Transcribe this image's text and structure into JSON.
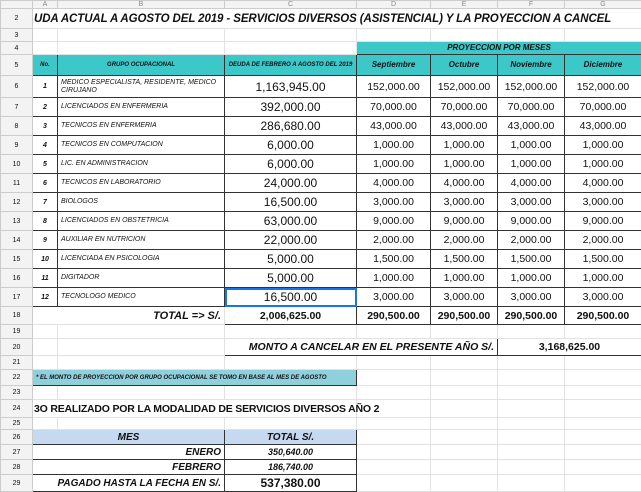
{
  "columns": [
    "A",
    "B",
    "C",
    "D",
    "E",
    "F",
    "G"
  ],
  "title": "UDA ACTUAL A AGOSTO DEL 2019 - SERVICIOS DIVERSOS (ASISTENCIAL) Y LA PROYECCION A CANCEL",
  "projection_header": "PROYECCION POR MESES",
  "headers": {
    "no": "No.",
    "grupo": "GRUPO OCUPACIONAL",
    "deuda": "DEUDA DE FEBRERO A AGOSTO DEL 2019",
    "months": [
      "Septiembre",
      "Octubre",
      "Noviembre",
      "Diciembre"
    ]
  },
  "rows": [
    {
      "no": "1",
      "grupo": "MEDICO ESPECIALISTA, RESIDENTE, MEDICO CIRUJANO",
      "deuda": "1,163,945.00",
      "m": [
        "152,000.00",
        "152,000.00",
        "152,000.00",
        "152,000.00"
      ]
    },
    {
      "no": "2",
      "grupo": "LICENCIADOS EN ENFERMERIA",
      "deuda": "392,000.00",
      "m": [
        "70,000.00",
        "70,000.00",
        "70,000.00",
        "70,000.00"
      ]
    },
    {
      "no": "3",
      "grupo": "TECNICOS EN ENFERMERIA",
      "deuda": "286,680.00",
      "m": [
        "43,000.00",
        "43,000.00",
        "43,000.00",
        "43,000.00"
      ]
    },
    {
      "no": "4",
      "grupo": "TECNICOS EN COMPUTACION",
      "deuda": "6,000.00",
      "m": [
        "1,000.00",
        "1,000.00",
        "1,000.00",
        "1,000.00"
      ]
    },
    {
      "no": "5",
      "grupo": "LIC. EN ADMINISTRACION",
      "deuda": "6,000.00",
      "m": [
        "1,000.00",
        "1,000.00",
        "1,000.00",
        "1,000.00"
      ]
    },
    {
      "no": "6",
      "grupo": "TECNICOS EN LABORATORIO",
      "deuda": "24,000.00",
      "m": [
        "4,000.00",
        "4,000.00",
        "4,000.00",
        "4,000.00"
      ]
    },
    {
      "no": "7",
      "grupo": "BIOLOGOS",
      "deuda": "16,500.00",
      "m": [
        "3,000.00",
        "3,000.00",
        "3,000.00",
        "3,000.00"
      ]
    },
    {
      "no": "8",
      "grupo": "LICENCIADOS EN OBSTETRICIA",
      "deuda": "63,000.00",
      "m": [
        "9,000.00",
        "9,000.00",
        "9,000.00",
        "9,000.00"
      ]
    },
    {
      "no": "9",
      "grupo": "AUXILIAR EN NUTRICION",
      "deuda": "22,000.00",
      "m": [
        "2,000.00",
        "2,000.00",
        "2,000.00",
        "2,000.00"
      ]
    },
    {
      "no": "10",
      "grupo": "LICENCIADA EN PSICOLOGIA",
      "deuda": "5,000.00",
      "m": [
        "1,500.00",
        "1,500.00",
        "1,500.00",
        "1,500.00"
      ]
    },
    {
      "no": "11",
      "grupo": "DIGITADOR",
      "deuda": "5,000.00",
      "m": [
        "1,000.00",
        "1,000.00",
        "1,000.00",
        "1,000.00"
      ]
    },
    {
      "no": "12",
      "grupo": "TECNOLOGO MEDICO",
      "deuda": "16,500.00",
      "m": [
        "3,000.00",
        "3,000.00",
        "3,000.00",
        "3,000.00"
      ]
    }
  ],
  "total": {
    "label": "TOTAL  =>  S/.",
    "deuda": "2,006,625.00",
    "m": [
      "290,500.00",
      "290,500.00",
      "290,500.00",
      "290,500.00"
    ]
  },
  "monto": {
    "label": "MONTO A CANCELAR EN EL PRESENTE AÑO S/.",
    "value": "3,168,625.00"
  },
  "note": "* EL MONTO DE PROYECCION POR GRUPO OCUPACIONAL SE TOMO EN BASE AL MES DE AGOSTO",
  "subtitle": "3O REALIZADO POR LA MODALIDAD DE SERVICIOS DIVERSOS AÑO 2",
  "pagos": {
    "h_mes": "MES",
    "h_total": "TOTAL S/.",
    "rows": [
      {
        "mes": "ENERO",
        "total": "350,640.00"
      },
      {
        "mes": "FEBRERO",
        "total": "186,740.00"
      }
    ],
    "final_label": "PAGADO HASTA LA FECHA EN S/.",
    "final_value": "537,380.00"
  }
}
